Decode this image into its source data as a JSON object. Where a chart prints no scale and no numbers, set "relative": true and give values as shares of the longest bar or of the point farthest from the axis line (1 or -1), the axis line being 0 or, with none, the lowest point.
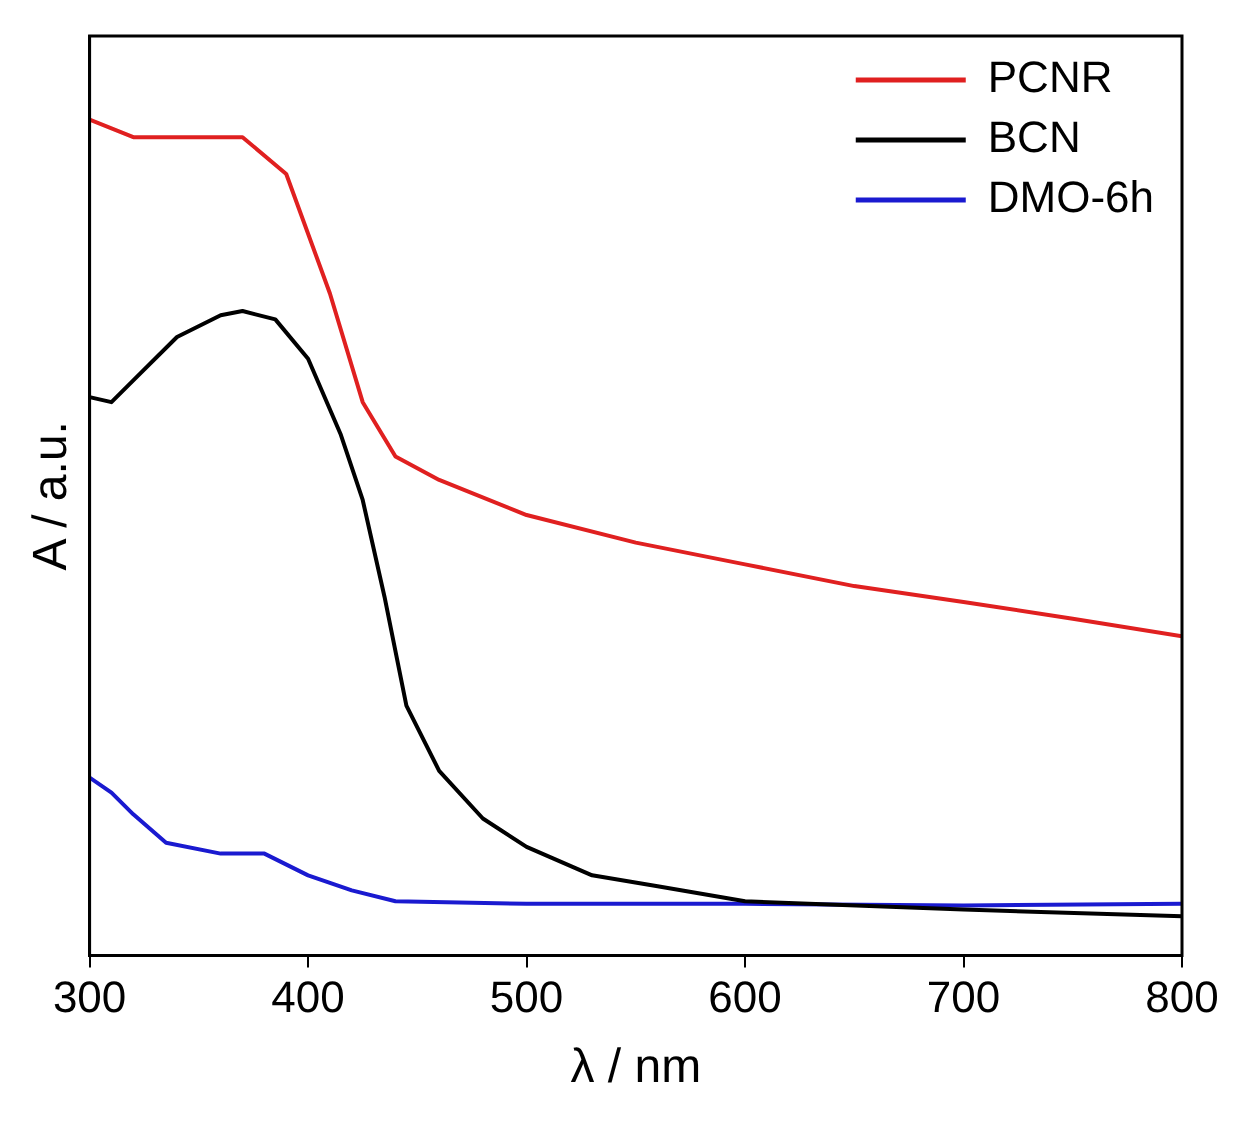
{
  "chart_data": {
    "type": "line",
    "xlabel": "λ / nm",
    "ylabel": "A / a.u.",
    "relative": true,
    "xlim": [
      300,
      800
    ],
    "xticks": [
      300,
      400,
      500,
      600,
      700,
      800
    ],
    "legend": "top right",
    "marker": "none",
    "line_style": "solid",
    "grid": false,
    "series": [
      {
        "name": "PCNR",
        "color": "#e02020",
        "x": [
          300,
          320,
          370,
          390,
          410,
          425,
          440,
          460,
          500,
          550,
          600,
          650,
          700,
          750,
          800
        ],
        "values": [
          1.0,
          0.979,
          0.979,
          0.935,
          0.792,
          0.662,
          0.597,
          0.569,
          0.527,
          0.494,
          0.468,
          0.442,
          0.423,
          0.403,
          0.382
        ]
      },
      {
        "name": "BCN",
        "color": "#000000",
        "x": [
          300,
          310,
          320,
          340,
          360,
          370,
          385,
          400,
          415,
          425,
          435,
          445,
          460,
          480,
          500,
          530,
          560,
          600,
          700,
          800
        ],
        "values": [
          0.668,
          0.662,
          0.688,
          0.74,
          0.766,
          0.771,
          0.761,
          0.714,
          0.623,
          0.545,
          0.429,
          0.299,
          0.221,
          0.164,
          0.13,
          0.096,
          0.083,
          0.065,
          0.055,
          0.047
        ]
      },
      {
        "name": "DMO-6h",
        "color": "#1a1ad0",
        "x": [
          300,
          310,
          320,
          335,
          360,
          380,
          400,
          420,
          440,
          500,
          600,
          700,
          800
        ],
        "values": [
          0.213,
          0.195,
          0.169,
          0.135,
          0.122,
          0.122,
          0.096,
          0.078,
          0.065,
          0.062,
          0.062,
          0.06,
          0.062
        ]
      }
    ]
  }
}
